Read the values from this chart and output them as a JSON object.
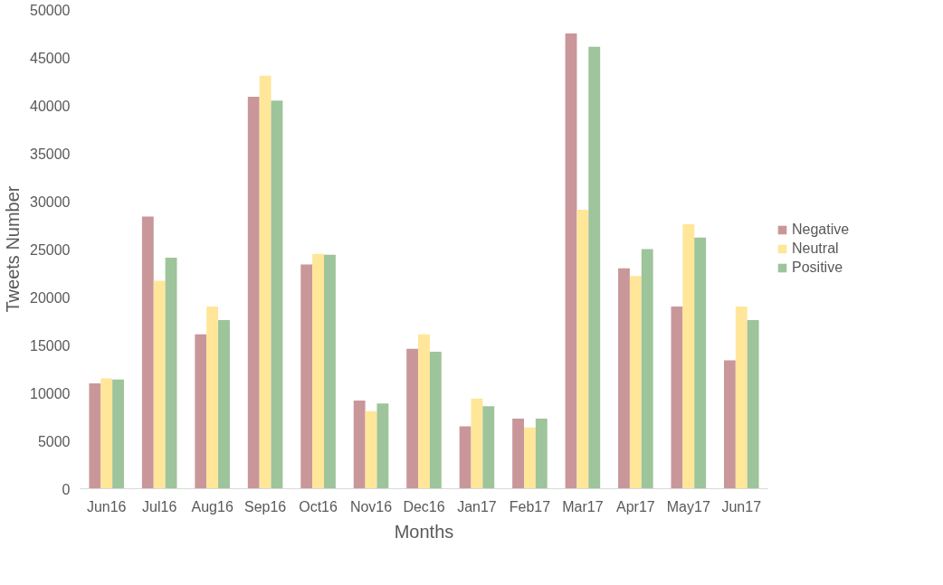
{
  "chart_data": {
    "type": "bar",
    "xlabel": "Months",
    "ylabel": "Tweets Number",
    "categories": [
      "Jun16",
      "Jul16",
      "Aug16",
      "Sep16",
      "Oct16",
      "Nov16",
      "Dec16",
      "Jan17",
      "Feb17",
      "Mar17",
      "Apr17",
      "May17",
      "Jun17"
    ],
    "series": [
      {
        "name": "Negative",
        "color": "#c9979a",
        "values": [
          11000,
          28400,
          16100,
          40900,
          23400,
          9200,
          14600,
          6500,
          7300,
          47500,
          23000,
          19000,
          13400
        ]
      },
      {
        "name": "Neutral",
        "color": "#ffe699",
        "values": [
          11500,
          21700,
          19000,
          43100,
          24500,
          8100,
          16100,
          9400,
          6400,
          29100,
          22200,
          27600,
          19000
        ]
      },
      {
        "name": "Positive",
        "color": "#9dc49a",
        "values": [
          11400,
          24100,
          17600,
          40500,
          24400,
          8900,
          14300,
          8600,
          7300,
          46100,
          25000,
          26200,
          17600
        ]
      }
    ],
    "ylim": [
      0,
      50000
    ],
    "yticks": [
      0,
      5000,
      10000,
      15000,
      20000,
      25000,
      30000,
      35000,
      40000,
      45000,
      50000
    ],
    "grid": false,
    "legend": "right"
  }
}
